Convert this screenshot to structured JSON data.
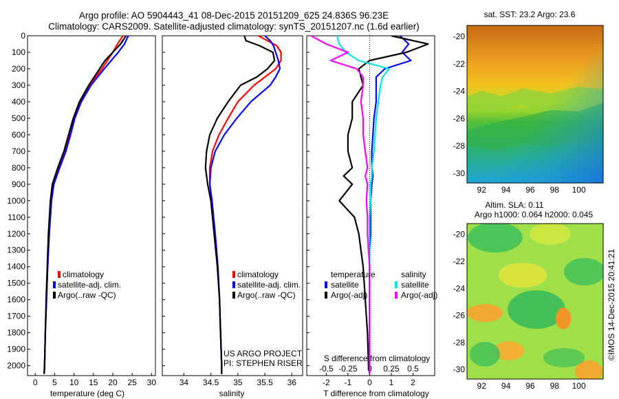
{
  "title_line1": "Argo profile: AO 5904443_41 08-Dec-2015 20151209_625 24.836S 96.23E",
  "title_line2": "Climatology: CARS2009. Satellite-adjusted climatology: synTS_20151207.nc (1.6d earlier)",
  "credit": "©IMOS 14-Dec-2015 20:41:21",
  "project_line1": "US ARGO PROJECT",
  "project_line2": "PI: STEPHEN RISER",
  "colors": {
    "climatology": "#ff0000",
    "satellite_adj": "#0000ff",
    "argo": "#000000",
    "temp_satellite_diff": "#0000ff",
    "temp_argo_diff": "#000000",
    "sal_satellite_diff": "#00e5e5",
    "sal_argo_diff": "#ff00ff"
  },
  "legends": {
    "temperature": [
      "climatology",
      "satellite-adj. clim.",
      "Argo(..raw -QC)"
    ],
    "salinity": [
      "climatology",
      "satellite-adj. clim.",
      "Argo(..raw -QC)"
    ],
    "diff_temp_header": "temperature",
    "diff_temp_items": [
      "satellite",
      "Argo(-adj)"
    ],
    "diff_sal_header": "salinity",
    "diff_sal_items": [
      "satellite",
      "Argo(-adj)"
    ]
  },
  "chart_data": [
    {
      "type": "line",
      "id": "temperature",
      "xlabel": "temperature (deg C)",
      "xlim": [
        -2,
        31
      ],
      "xticks": [
        0,
        5,
        10,
        15,
        20,
        25,
        30
      ],
      "ylim": [
        2060,
        0
      ],
      "yticks": [
        0,
        100,
        200,
        300,
        400,
        500,
        600,
        700,
        800,
        900,
        1000,
        1100,
        1200,
        1300,
        1400,
        1500,
        1600,
        1700,
        1800,
        1900,
        2000
      ],
      "depth": [
        0,
        50,
        100,
        150,
        200,
        300,
        400,
        500,
        600,
        700,
        800,
        900,
        1000,
        1200,
        1400,
        1600,
        1800,
        2000,
        2050
      ],
      "series": [
        {
          "name": "climatology",
          "values": [
            22.6,
            21.2,
            20.0,
            18.6,
            17.2,
            14.0,
            11.6,
            10.0,
            8.9,
            7.8,
            6.2,
            4.6,
            4.1,
            3.6,
            3.2,
            2.9,
            2.6,
            2.4,
            2.3
          ]
        },
        {
          "name": "satellite-adj. clim.",
          "values": [
            24.0,
            23.0,
            21.4,
            19.6,
            17.8,
            14.4,
            11.9,
            10.2,
            9.1,
            7.9,
            6.3,
            4.8,
            4.2,
            3.6,
            3.2,
            2.9,
            2.6,
            2.4,
            2.3
          ]
        },
        {
          "name": "Argo(..raw -QC)",
          "values": [
            23.4,
            22.0,
            20.0,
            18.0,
            16.6,
            13.8,
            11.4,
            9.8,
            8.6,
            7.4,
            5.8,
            4.4,
            3.9,
            3.4,
            3.1,
            2.8,
            2.6,
            2.4,
            2.3
          ]
        }
      ]
    },
    {
      "type": "line",
      "id": "salinity",
      "xlabel": "salinity",
      "xlim": [
        33.6,
        36.2
      ],
      "xticks": [
        34,
        34.5,
        35,
        35.5,
        36
      ],
      "ylim": [
        2060,
        0
      ],
      "depth": [
        0,
        30,
        60,
        100,
        150,
        200,
        250,
        300,
        400,
        500,
        600,
        700,
        800,
        900,
        1000,
        1200,
        1400,
        1600,
        1800,
        2000,
        2050
      ],
      "series": [
        {
          "name": "climatology",
          "values": [
            35.38,
            35.55,
            35.72,
            35.8,
            35.8,
            35.7,
            35.5,
            35.3,
            35.0,
            34.82,
            34.65,
            34.53,
            34.48,
            34.48,
            34.52,
            34.58,
            34.63,
            34.66,
            34.68,
            34.7,
            34.7
          ]
        },
        {
          "name": "satellite-adj. clim.",
          "values": [
            35.5,
            35.6,
            35.66,
            35.7,
            35.75,
            35.78,
            35.7,
            35.6,
            35.24,
            34.98,
            34.75,
            34.58,
            34.5,
            34.48,
            34.52,
            34.58,
            34.63,
            34.66,
            34.68,
            34.7,
            34.7
          ]
        },
        {
          "name": "Argo(..raw -QC)",
          "values": [
            35.12,
            35.15,
            35.4,
            35.65,
            35.68,
            35.55,
            35.35,
            35.05,
            34.82,
            34.62,
            34.48,
            34.42,
            34.4,
            34.44,
            34.5,
            34.56,
            34.62,
            34.66,
            34.68,
            34.7,
            34.7
          ]
        }
      ]
    },
    {
      "type": "line",
      "id": "difference",
      "xlabel": "T difference from climatology",
      "xlim": [
        -2.9,
        3.0
      ],
      "xticks": [
        -2,
        -1,
        0,
        1,
        2
      ],
      "top_axis_label": "S difference from climatology",
      "top_ticks": [
        -0.5,
        -0.25,
        0,
        0.25,
        0.5
      ],
      "ylim": [
        2060,
        0
      ],
      "depth": [
        0,
        50,
        100,
        150,
        200,
        250,
        300,
        400,
        500,
        600,
        700,
        800,
        850,
        900,
        1000,
        1100,
        1200,
        1300,
        1400,
        1600,
        1800,
        2000,
        2050
      ],
      "series": [
        {
          "name": "temperature satellite",
          "values": [
            1.4,
            1.8,
            1.5,
            1.9,
            0.7,
            0.3,
            0.3,
            0.3,
            0.2,
            0.15,
            0.1,
            0.1,
            0.15,
            0.1,
            0.05,
            0.05,
            0.05,
            0.0,
            0.0,
            0.0,
            0.0,
            0.0,
            0.0
          ]
        },
        {
          "name": "temperature Argo(-adj)",
          "values": [
            1.0,
            2.7,
            1.7,
            0.0,
            -0.5,
            -0.4,
            -0.3,
            -0.8,
            -0.8,
            -1.0,
            -1.0,
            -0.8,
            -1.2,
            -0.8,
            -1.4,
            -0.7,
            -0.5,
            -0.4,
            -0.3,
            -0.2,
            -0.1,
            -0.05,
            0.0
          ]
        },
        {
          "name": "salinity satellite",
          "values": [
            -1.5,
            -1.4,
            -1.1,
            -0.5,
            0.9,
            0.6,
            0.5,
            0.4,
            0.3,
            0.25,
            0.2,
            0.1,
            0.1,
            0.05,
            0.05,
            0.0,
            0.0,
            0.0,
            0.0,
            0.0,
            0.0,
            0.0,
            0.0
          ]
        },
        {
          "name": "salinity Argo(-adj)",
          "values": [
            -2.7,
            -2.0,
            -1.0,
            -1.8,
            -0.6,
            -0.3,
            -0.3,
            -0.4,
            -0.3,
            -0.3,
            -0.2,
            -0.1,
            -0.2,
            -0.1,
            -0.15,
            -0.1,
            -0.1,
            -0.05,
            0.0,
            0.0,
            0.0,
            0.0,
            0.0
          ]
        }
      ]
    },
    {
      "type": "heatmap",
      "id": "sst_map",
      "title": "sat. SST: 23.2 Argo: 23.6",
      "xlim": [
        90.8,
        102.0
      ],
      "xticks": [
        92,
        94,
        96,
        98,
        100
      ],
      "ylim": [
        -30.7,
        -19.2
      ],
      "yticks": [
        -20,
        -22,
        -24,
        -26,
        -28,
        -30
      ],
      "description_of_pattern": "warm orange in north grading to green and cyan-blue in south-east"
    },
    {
      "type": "heatmap",
      "id": "sla_map",
      "title_line1": "Altim. SLA: 0.11",
      "title_line2": "Argo h1000: 0.064 h2000: 0.045",
      "xlim": [
        90.8,
        102.0
      ],
      "xticks": [
        92,
        94,
        96,
        98,
        100
      ],
      "ylim": [
        -30.7,
        -19.2
      ],
      "yticks": [
        -20,
        -22,
        -24,
        -26,
        -28,
        -30
      ]
    }
  ]
}
